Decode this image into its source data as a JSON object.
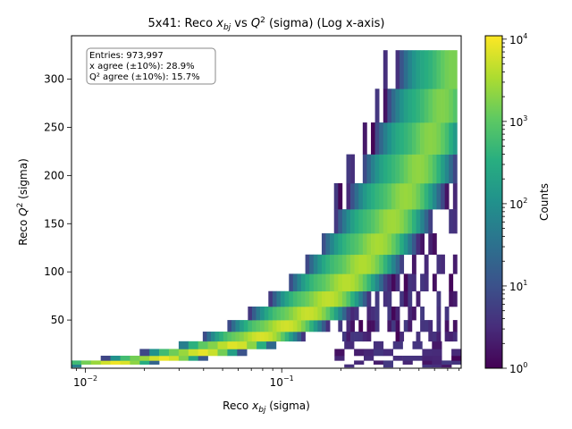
{
  "chart_data": {
    "type": "heatmap",
    "title_parts": {
      "prefix": "5x41: Reco ",
      "xsym": "x",
      "xsub": "bj",
      "mid": " vs ",
      "qsym": "Q",
      "qsup": "2",
      "suffix": " (sigma) (Log x-axis)"
    },
    "xlabel_parts": {
      "prefix": "Reco ",
      "sym": "x",
      "sub": "bj",
      "suffix": " (sigma)"
    },
    "ylabel_parts": {
      "prefix": "Reco ",
      "sym": "Q",
      "sup": "2",
      "suffix": " (sigma)"
    },
    "x_scale": "log",
    "xlim": [
      0.0085,
      0.82
    ],
    "ylim": [
      0,
      345
    ],
    "x_ticks": [
      {
        "value": 0.01,
        "base": "10",
        "exp": "−2"
      },
      {
        "value": 0.1,
        "base": "10",
        "exp": "−1"
      }
    ],
    "y_ticks": [
      50,
      100,
      150,
      200,
      250,
      300
    ],
    "colorbar": {
      "label": "Counts",
      "scale": "log",
      "range": [
        1,
        11000
      ],
      "colormap": "viridis",
      "ticks": [
        {
          "value": 1,
          "base": "10",
          "exp": "0"
        },
        {
          "value": 10,
          "base": "10",
          "exp": "1"
        },
        {
          "value": 100,
          "base": "10",
          "exp": "2"
        },
        {
          "value": 1000,
          "base": "10",
          "exp": "3"
        },
        {
          "value": 10000,
          "base": "10",
          "exp": "4"
        }
      ]
    },
    "stats_box": {
      "lines": [
        "Entries: 973,997",
        "x agree (±10%): 28.9%",
        "Q² agree (±10%): 15.7%"
      ]
    },
    "density_model": {
      "q2_bins": [
        [
          1,
          4
        ],
        [
          4,
          8
        ],
        [
          8,
          13
        ],
        [
          13,
          20
        ],
        [
          20,
          28
        ],
        [
          28,
          38
        ],
        [
          38,
          50
        ],
        [
          50,
          64
        ],
        [
          64,
          80
        ],
        [
          80,
          98
        ],
        [
          98,
          118
        ],
        [
          118,
          140
        ],
        [
          140,
          165
        ],
        [
          165,
          192
        ],
        [
          192,
          222
        ],
        [
          222,
          255
        ],
        [
          255,
          290
        ],
        [
          290,
          330
        ]
      ],
      "ridges": [
        {
          "x_per_q2": 0.0024,
          "width_dex": 0.055,
          "peak": 10000
        },
        {
          "x_per_q2": 0.00175,
          "width_dex": 0.05,
          "peak": 1500
        }
      ],
      "low_x_edge_per_q2": 0.00105,
      "x_upper": 0.8,
      "noise_floor": 1
    }
  }
}
